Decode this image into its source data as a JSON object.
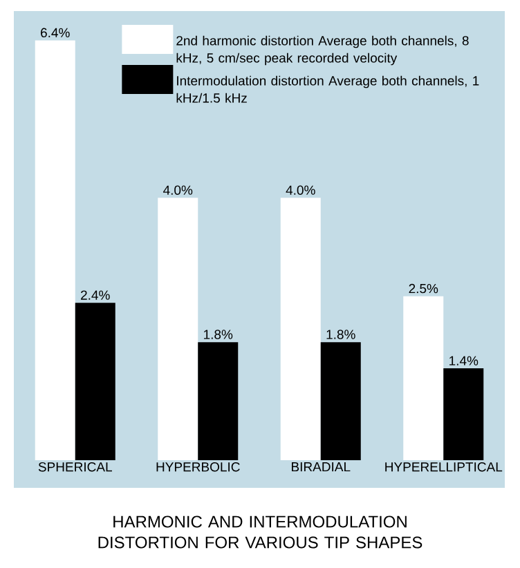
{
  "chart_data": {
    "type": "bar",
    "title": "HARMONIC AND INTERMODULATION DISTORTION FOR VARIOUS TIP SHAPES",
    "categories": [
      "SPHERICAL",
      "HYPERBOLIC",
      "BIRADIAL",
      "HYPERELLIPTICAL"
    ],
    "series": [
      {
        "name": "2nd harmonic distortion Average both channels, 8 kHz, 5 cm/sec peak recorded velocity",
        "color": "#ffffff",
        "values": [
          6.4,
          4.0,
          4.0,
          2.5
        ],
        "value_labels": [
          "6.4%",
          "4.0%",
          "4.0%",
          "2.5%"
        ]
      },
      {
        "name": "Intermodulation distortion Average both channels, 1 kHz/1.5 kHz",
        "color": "#000000",
        "values": [
          2.4,
          1.8,
          1.8,
          1.4
        ],
        "value_labels": [
          "2.4%",
          "1.8%",
          "1.8%",
          "1.4%"
        ]
      }
    ],
    "legend": "top right"
  }
}
